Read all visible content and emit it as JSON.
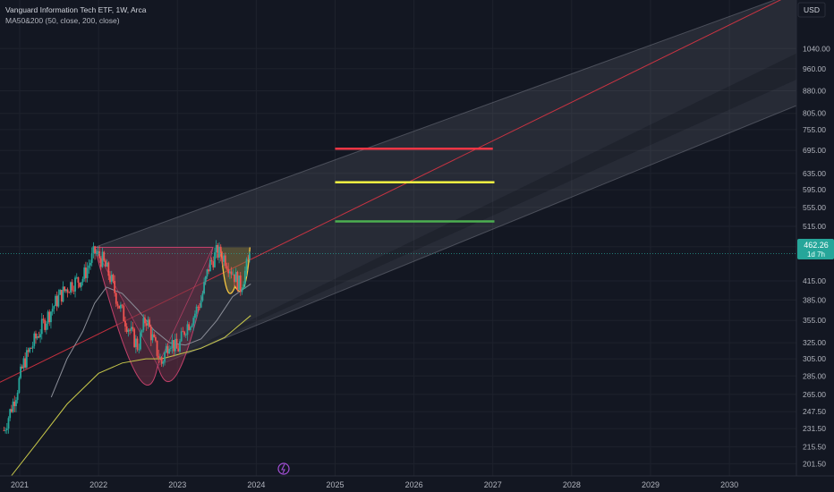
{
  "header": {
    "title": "Vanguard Information Tech ETF, 1W, Arca",
    "indicator": "MA50&200 (50, close, 200, close)"
  },
  "currency": "USD",
  "price_label": {
    "value": "462.26",
    "countdown": "1d 7h"
  },
  "colors": {
    "background": "#131722",
    "up": "#26a69a",
    "down": "#ef5350",
    "ma50": "#8a8d97",
    "ma200": "#c8c84a",
    "target_high": "#f23645",
    "target_mid": "#f5f542",
    "target_low": "#4caf50",
    "channel_mid": "#f23645",
    "cup_fill": "#6e2f45",
    "handle_curve": "#f5c542"
  },
  "chart_data": {
    "type": "candlestick",
    "x_axis": {
      "ticks": [
        "2021",
        "2022",
        "2023",
        "2024",
        "2025",
        "2026",
        "2027",
        "2028",
        "2029",
        "2030"
      ],
      "range": [
        2020.75,
        2030.85
      ]
    },
    "y_axis": {
      "scale": "log",
      "ticks": [
        "1040.00",
        "960.00",
        "880.00",
        "805.00",
        "755.00",
        "695.00",
        "635.00",
        "595.00",
        "555.00",
        "515.00",
        "475.00",
        "415.00",
        "385.00",
        "355.00",
        "325.00",
        "305.00",
        "285.00",
        "265.00",
        "247.50",
        "231.50",
        "215.50",
        "201.50"
      ],
      "range": [
        192,
        1260
      ]
    },
    "ohlc_anchors": [
      [
        2020.8,
        230
      ],
      [
        2020.95,
        265
      ],
      [
        2021.05,
        300
      ],
      [
        2021.2,
        330
      ],
      [
        2021.35,
        360
      ],
      [
        2021.5,
        390
      ],
      [
        2021.65,
        410
      ],
      [
        2021.8,
        420
      ],
      [
        2021.95,
        465
      ],
      [
        2022.05,
        450
      ],
      [
        2022.15,
        420
      ],
      [
        2022.25,
        380
      ],
      [
        2022.4,
        340
      ],
      [
        2022.5,
        320
      ],
      [
        2022.6,
        360
      ],
      [
        2022.7,
        325
      ],
      [
        2022.8,
        300
      ],
      [
        2022.9,
        330
      ],
      [
        2023.0,
        315
      ],
      [
        2023.1,
        345
      ],
      [
        2023.2,
        360
      ],
      [
        2023.3,
        385
      ],
      [
        2023.4,
        440
      ],
      [
        2023.5,
        465
      ],
      [
        2023.6,
        455
      ],
      [
        2023.7,
        430
      ],
      [
        2023.8,
        405
      ],
      [
        2023.88,
        440
      ],
      [
        2023.93,
        462.26
      ]
    ],
    "ma50": [
      [
        2021.4,
        262
      ],
      [
        2021.6,
        305
      ],
      [
        2021.8,
        340
      ],
      [
        2021.95,
        380
      ],
      [
        2022.1,
        405
      ],
      [
        2022.3,
        395
      ],
      [
        2022.5,
        370
      ],
      [
        2022.7,
        342
      ],
      [
        2022.9,
        325
      ],
      [
        2023.1,
        322
      ],
      [
        2023.3,
        330
      ],
      [
        2023.5,
        355
      ],
      [
        2023.7,
        390
      ],
      [
        2023.93,
        410
      ]
    ],
    "ma200": [
      [
        2020.8,
        185
      ],
      [
        2021.2,
        217
      ],
      [
        2021.6,
        255
      ],
      [
        2022.0,
        288
      ],
      [
        2022.3,
        300
      ],
      [
        2022.6,
        305
      ],
      [
        2022.8,
        305
      ],
      [
        2023.0,
        310
      ],
      [
        2023.3,
        318
      ],
      [
        2023.6,
        332
      ],
      [
        2023.93,
        362
      ]
    ],
    "channel": {
      "upper": [
        [
          2021.95,
          474
        ],
        [
          2030.85,
          1300
        ]
      ],
      "upper_inner": [
        [
          2022.75,
          297
        ],
        [
          2030.85,
          1020
        ]
      ],
      "lower_inner": [
        [
          2022.75,
          297
        ],
        [
          2030.85,
          920
        ]
      ],
      "lower": [
        [
          2022.75,
          297
        ],
        [
          2030.85,
          830
        ]
      ],
      "midline": [
        [
          2020.75,
          278
        ],
        [
          2030.85,
          1300
        ]
      ]
    },
    "cup": {
      "rim_left": [
        2021.95,
        474
      ],
      "rim_right": [
        2023.45,
        474
      ],
      "bottom": [
        2022.75,
        297
      ]
    },
    "handle": {
      "left": [
        2023.55,
        474
      ],
      "right": [
        2023.92,
        474
      ],
      "bottom": [
        2023.73,
        406
      ]
    },
    "target_levels": [
      {
        "price": 700,
        "x": [
          2025.0,
          2027.0
        ],
        "color": "#f23645"
      },
      {
        "price": 613,
        "x": [
          2025.0,
          2027.02
        ],
        "color": "#f5f542"
      },
      {
        "price": 525,
        "x": [
          2025.0,
          2027.02
        ],
        "color": "#4caf50"
      }
    ],
    "last_price": 462.26,
    "grid": true
  }
}
